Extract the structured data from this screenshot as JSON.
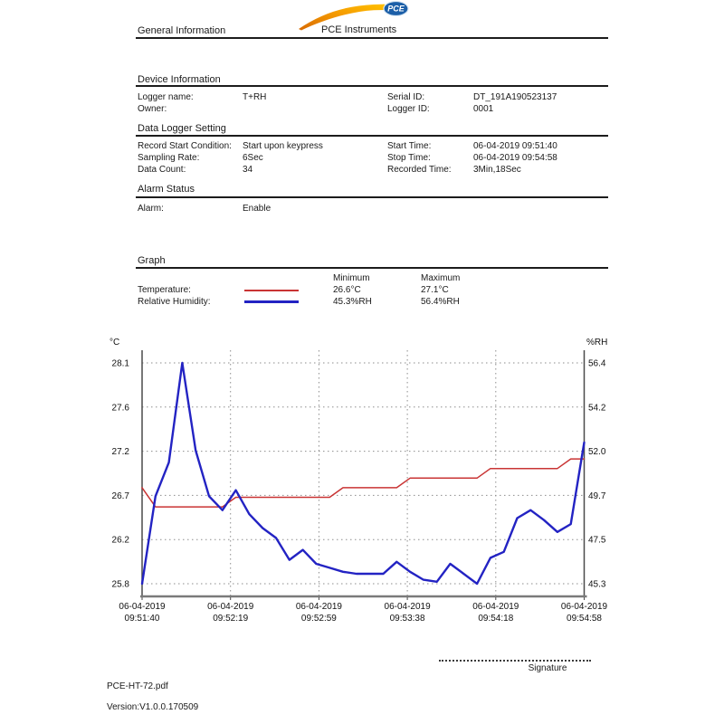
{
  "header": {
    "section_title": "General Information",
    "brand": "PCE Instruments",
    "logo_text": "PCE",
    "logo_orange": "#f59b00",
    "logo_blue": "#1c5fa8"
  },
  "device_info": {
    "title": "Device Information",
    "rows": [
      {
        "l_label": "Logger name:",
        "l_value": "T+RH",
        "r_label": "Serial ID:",
        "r_value": "DT_191A190523137"
      },
      {
        "l_label": "Owner:",
        "l_value": "",
        "r_label": "Logger ID:",
        "r_value": "0001"
      }
    ]
  },
  "logger_setting": {
    "title": "Data Logger Setting",
    "rows": [
      {
        "l_label": "Record Start Condition:",
        "l_value": "Start upon keypress",
        "r_label": "Start Time:",
        "r_value": "06-04-2019 09:51:40"
      },
      {
        "l_label": "Sampling Rate:",
        "l_value": "6Sec",
        "r_label": "Stop Time:",
        "r_value": "06-04-2019 09:54:58"
      },
      {
        "l_label": "Data Count:",
        "l_value": "34",
        "r_label": "Recorded Time:",
        "r_value": "3Min,18Sec"
      }
    ]
  },
  "alarm": {
    "title": "Alarm Status",
    "label": "Alarm:",
    "value": "Enable"
  },
  "graph_section": {
    "title": "Graph",
    "col_min": "Minimum",
    "col_max": "Maximum",
    "rows": [
      {
        "label": "Temperature:",
        "min": "26.6°C",
        "max": "27.1°C",
        "color": "#c93434"
      },
      {
        "label": "Relative Humidity:",
        "min": "45.3%RH",
        "max": "56.4%RH",
        "color": "#2323c3"
      }
    ]
  },
  "chart_data": {
    "type": "line",
    "grid": true,
    "left_axis": {
      "label": "°C",
      "range": [
        25.8,
        28.1
      ],
      "ticks": [
        "28.1",
        "27.6",
        "27.2",
        "26.7",
        "26.2",
        "25.8"
      ]
    },
    "right_axis": {
      "label": "%RH",
      "range": [
        45.3,
        56.4
      ],
      "ticks": [
        "56.4",
        "54.2",
        "52.0",
        "49.7",
        "47.5",
        "45.3"
      ]
    },
    "x_ticks": [
      [
        "06-04-2019",
        "09:51:40"
      ],
      [
        "06-04-2019",
        "09:52:19"
      ],
      [
        "06-04-2019",
        "09:52:59"
      ],
      [
        "06-04-2019",
        "09:53:38"
      ],
      [
        "06-04-2019",
        "09:54:18"
      ],
      [
        "06-04-2019",
        "09:54:58"
      ]
    ],
    "series": [
      {
        "name": "Temperature",
        "axis": "left",
        "color": "#c93434",
        "stroke_width": 1.5,
        "values": [
          26.8,
          26.6,
          26.6,
          26.6,
          26.6,
          26.6,
          26.6,
          26.7,
          26.7,
          26.7,
          26.7,
          26.7,
          26.7,
          26.7,
          26.7,
          26.8,
          26.8,
          26.8,
          26.8,
          26.8,
          26.9,
          26.9,
          26.9,
          26.9,
          26.9,
          26.9,
          27.0,
          27.0,
          27.0,
          27.0,
          27.0,
          27.0,
          27.1,
          27.1
        ]
      },
      {
        "name": "Relative Humidity",
        "axis": "right",
        "color": "#2323c3",
        "stroke_width": 2.4,
        "values": [
          45.3,
          49.7,
          51.4,
          56.4,
          52.0,
          49.7,
          49.0,
          50.0,
          48.8,
          48.1,
          47.6,
          46.5,
          47.0,
          46.3,
          46.1,
          45.9,
          45.8,
          45.8,
          45.8,
          46.4,
          45.9,
          45.5,
          45.4,
          46.3,
          45.8,
          45.3,
          46.6,
          46.9,
          48.6,
          49.0,
          48.5,
          47.9,
          48.3,
          52.4
        ]
      }
    ]
  },
  "footer": {
    "signature_label": "Signature",
    "filename": "PCE-HT-72.pdf",
    "version": "Version:V1.0.0.170509"
  }
}
